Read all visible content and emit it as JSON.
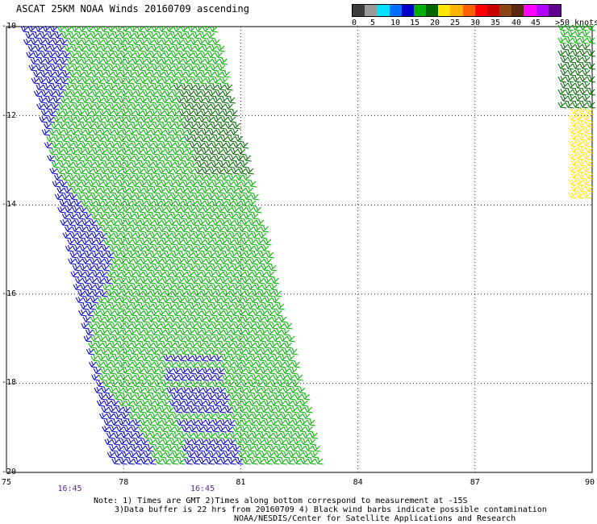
{
  "title": "ASCAT 25KM NOAA Winds 20160709 ascending",
  "legend": {
    "unit_label": ">50 knots",
    "labels": [
      "0",
      "5",
      "10",
      "15",
      "20",
      "25",
      "30",
      "35",
      "40",
      "45"
    ],
    "colors": [
      "#3c3c3c",
      "#9a9a9a",
      "#00e0ff",
      "#0070ff",
      "#0000c8",
      "#00b000",
      "#006400",
      "#ffe600",
      "#ffb400",
      "#ff6000",
      "#ff0000",
      "#c80000",
      "#8b4513",
      "#5a2a10",
      "#ff00ff",
      "#b000ff",
      "#600090"
    ]
  },
  "map": {
    "lat_labels": [
      "-10",
      "-12",
      "-14",
      "-16",
      "-18",
      "-20"
    ],
    "lon_labels": [
      "75",
      "78",
      "81",
      "84",
      "87",
      "90"
    ],
    "lat_range": [
      -20,
      -10
    ],
    "lon_range": [
      75,
      90
    ],
    "grid": "dotted",
    "time_labels": [
      {
        "text": "16:45",
        "lon": 76.6
      },
      {
        "text": "16:45",
        "lon": 80.0
      }
    ],
    "wind_colors": {
      "10-15": "#0000c8",
      "15-20": "#00b000",
      "20-25": "#006400",
      "25-30": "#ffe600"
    }
  },
  "notes": {
    "line1": "Note: 1) Times are GMT 2)Times along bottom correspond to measurement at -15S",
    "line2": "3)Data buffer is 22 hrs from 20160709 4) Black wind barbs indicate possible contamination",
    "line3": "NOAA/NESDIS/Center for Satellite Applications and Research"
  }
}
